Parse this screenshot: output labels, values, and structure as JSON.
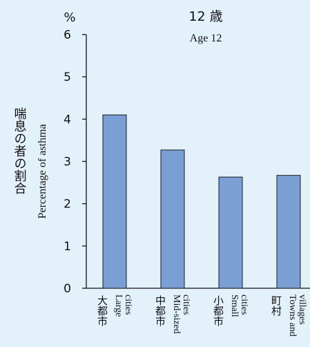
{
  "chart_data": {
    "type": "bar",
    "title": "12 歳",
    "subtitle": "Age 12",
    "unit_label": "%",
    "ylabel_ja": "喘息の者の割合",
    "ylabel_en": "Percentage of asthma",
    "ylim": [
      0,
      6
    ],
    "yticks": [
      "0",
      "1",
      "2",
      "3",
      "4",
      "5",
      "6"
    ],
    "categories": [
      {
        "ja": "大都市",
        "en": [
          "Large",
          "cities"
        ]
      },
      {
        "ja": "中都市",
        "en": [
          "Mid-sized",
          "cities"
        ]
      },
      {
        "ja": "小都市",
        "en": [
          "Small",
          "cities"
        ]
      },
      {
        "ja": "町村",
        "en": [
          "Towns and",
          "villages"
        ]
      }
    ],
    "values": [
      4.1,
      3.27,
      2.63,
      2.67
    ],
    "bar_color": "#7a9fd4",
    "bar_edge_color": "#1a1a1a",
    "background_color": "#e3f1fb"
  }
}
